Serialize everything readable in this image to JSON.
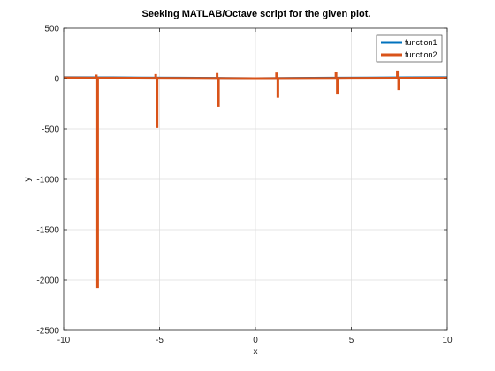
{
  "chart_data": {
    "type": "line",
    "title": "Seeking MATLAB/Octave script for the given plot.",
    "xlabel": "x",
    "ylabel": "y",
    "xlim": [
      -10,
      10
    ],
    "ylim": [
      -2500,
      500
    ],
    "xticks": [
      -10,
      -5,
      0,
      5,
      10
    ],
    "yticks": [
      500,
      0,
      -500,
      -1000,
      -1500,
      -2000,
      -2500
    ],
    "grid": true,
    "legend_position": "top-right",
    "series": [
      {
        "name": "function1",
        "color": "#0072bd",
        "x": [
          -10,
          -8,
          -6,
          -4,
          -2,
          0,
          2,
          4,
          6,
          8,
          10
        ],
        "y": [
          10,
          9,
          7,
          5,
          3,
          0,
          3,
          5,
          7,
          9,
          10
        ]
      },
      {
        "name": "function2",
        "color": "#d95319",
        "baseline": [
          {
            "x": -10,
            "y": 8
          },
          {
            "x": -8.3,
            "y": 6
          },
          {
            "x": -5.2,
            "y": 3
          },
          {
            "x": 0,
            "y": 0
          },
          {
            "x": 5,
            "y": 3
          },
          {
            "x": 10,
            "y": 5
          }
        ],
        "spikes": [
          {
            "x": -8.3,
            "high": 40,
            "low": -2080
          },
          {
            "x": -5.2,
            "high": 45,
            "low": -490
          },
          {
            "x": -2.0,
            "high": 55,
            "low": -280
          },
          {
            "x": 1.1,
            "high": 60,
            "low": -190
          },
          {
            "x": 4.2,
            "high": 70,
            "low": -150
          },
          {
            "x": 7.4,
            "high": 80,
            "low": -115
          }
        ]
      }
    ]
  }
}
